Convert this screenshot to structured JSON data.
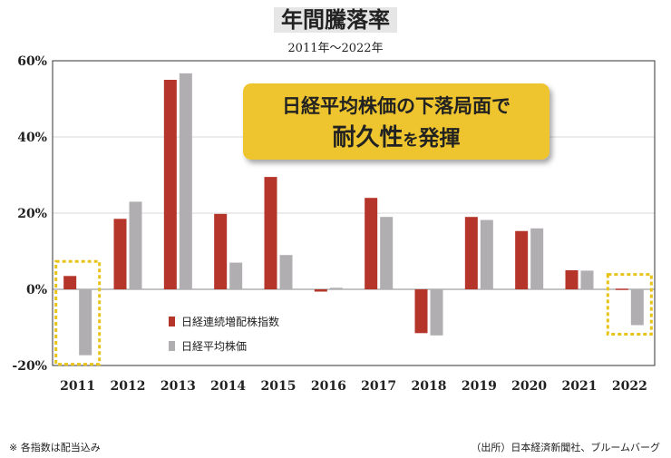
{
  "title": "年間騰落率",
  "subtitle": "2011年～2022年",
  "callout": {
    "line1": "日経平均株価の下落局面で",
    "line2_strong": "耐久性",
    "line2_small": "を",
    "line2_end": "発揮"
  },
  "footnote": "※ 各指数は配当込み",
  "source": "（出所）日本経済新聞社、ブルームバーグ",
  "colors": {
    "series1": "#b5352a",
    "series2": "#b0aeb0",
    "highlight": "#e8c31a",
    "callout_bg": "#eec52e"
  },
  "chart_data": {
    "type": "bar",
    "title": "年間騰落率",
    "subtitle": "2011年～2022年",
    "categories": [
      "2011",
      "2012",
      "2013",
      "2014",
      "2015",
      "2016",
      "2017",
      "2018",
      "2019",
      "2020",
      "2021",
      "2022"
    ],
    "series": [
      {
        "name": "日経連続増配株指数",
        "values": [
          3.5,
          18.5,
          55,
          19.8,
          29.5,
          -0.6,
          24,
          -11.5,
          19,
          15.3,
          5,
          0.1
        ]
      },
      {
        "name": "日経平均株価",
        "values": [
          -17.3,
          23,
          56.7,
          7,
          9,
          0.4,
          19,
          -12.1,
          18.2,
          16,
          4.9,
          -9.4
        ]
      }
    ],
    "ylim": [
      -20,
      60
    ],
    "yticks": [
      "-20%",
      "0%",
      "20%",
      "40%",
      "60%"
    ],
    "ytick_values": [
      -20,
      0,
      20,
      40,
      60
    ],
    "highlighted_categories": [
      "2011",
      "2022"
    ],
    "legend_placement": "bottom-left inside",
    "grid": true
  }
}
